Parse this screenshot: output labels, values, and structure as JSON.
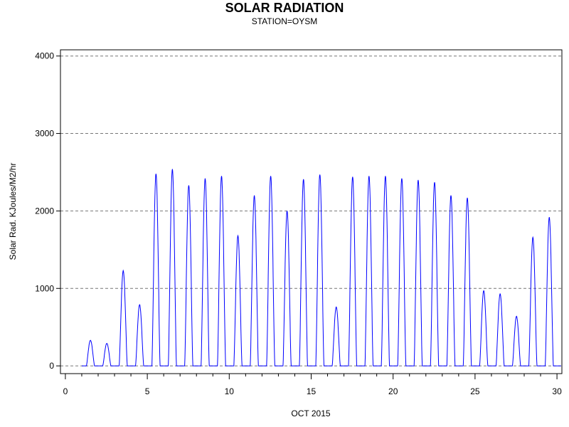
{
  "chart_data": {
    "type": "line",
    "title": "SOLAR RADIATION",
    "subtitle": "STATION=OYSM",
    "xlabel": "OCT 2015",
    "ylabel": "Solar Rad. KJoules/M2/hr",
    "xlim": [
      -0.3,
      30.3
    ],
    "ylim": [
      -100,
      4080
    ],
    "x_ticks": [
      0,
      5,
      10,
      15,
      20,
      25,
      30
    ],
    "y_ticks": [
      0,
      1000,
      2000,
      3000,
      4000
    ],
    "grid": "horizontal dashed",
    "line_color": "#0000ff",
    "daily_peaks": [
      {
        "day": 1,
        "peak": 330
      },
      {
        "day": 2,
        "peak": 290
      },
      {
        "day": 3,
        "peak": 1230
      },
      {
        "day": 4,
        "peak": 790
      },
      {
        "day": 5,
        "peak": 2480
      },
      {
        "day": 6,
        "peak": 2540
      },
      {
        "day": 7,
        "peak": 2330
      },
      {
        "day": 8,
        "peak": 2420
      },
      {
        "day": 9,
        "peak": 2450
      },
      {
        "day": 10,
        "peak": 1680
      },
      {
        "day": 11,
        "peak": 2200
      },
      {
        "day": 12,
        "peak": 2450
      },
      {
        "day": 13,
        "peak": 2000
      },
      {
        "day": 14,
        "peak": 2410
      },
      {
        "day": 15,
        "peak": 2470
      },
      {
        "day": 16,
        "peak": 760
      },
      {
        "day": 17,
        "peak": 2440
      },
      {
        "day": 18,
        "peak": 2450
      },
      {
        "day": 19,
        "peak": 2450
      },
      {
        "day": 20,
        "peak": 2420
      },
      {
        "day": 21,
        "peak": 2400
      },
      {
        "day": 22,
        "peak": 2370
      },
      {
        "day": 23,
        "peak": 2200
      },
      {
        "day": 24,
        "peak": 2170
      },
      {
        "day": 25,
        "peak": 970
      },
      {
        "day": 26,
        "peak": 930
      },
      {
        "day": 27,
        "peak": 640
      },
      {
        "day": 28,
        "peak": 1660
      },
      {
        "day": 29,
        "peak": 1920
      }
    ]
  }
}
